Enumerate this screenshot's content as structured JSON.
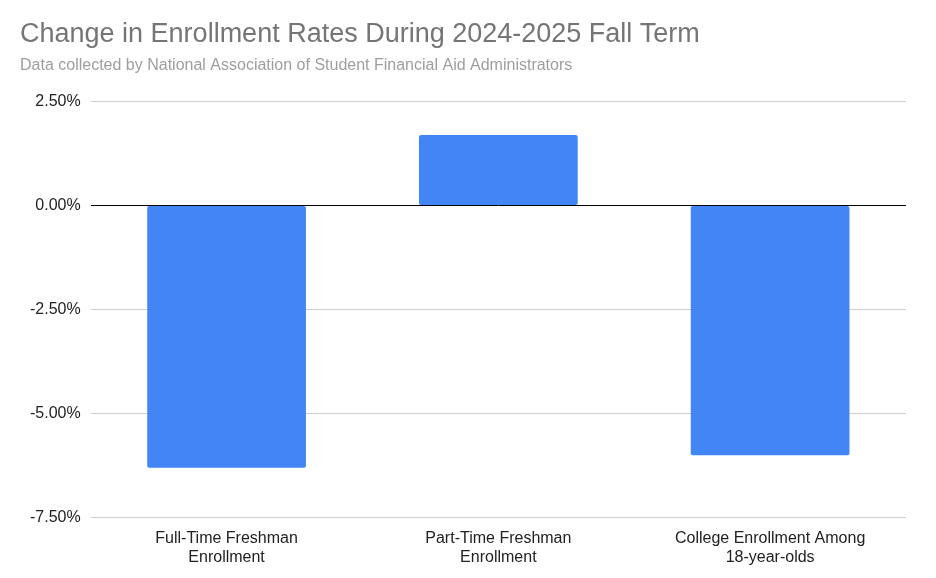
{
  "chart_data": {
    "type": "bar",
    "title": "Change in Enrollment Rates During 2024-2025 Fall Term",
    "subtitle": "Data collected by National Association of Student Financial Aid Administrators",
    "categories": [
      "Full-Time Freshman Enrollment",
      "Part-Time Freshman Enrollment",
      "College Enrollment Among 18-year-olds"
    ],
    "values": [
      -6.3,
      1.7,
      -6.0
    ],
    "color": "#4285f4",
    "ylim": [
      -7.5,
      2.5
    ],
    "yticks": [
      {
        "value": -7.5,
        "label": "-7.50%"
      },
      {
        "value": -5,
        "label": "-5.00%"
      },
      {
        "value": -2.5,
        "label": "-2.50%"
      },
      {
        "value": 0,
        "label": "0.00%"
      },
      {
        "value": 2.5,
        "label": "2.50%"
      }
    ],
    "grid": true
  }
}
